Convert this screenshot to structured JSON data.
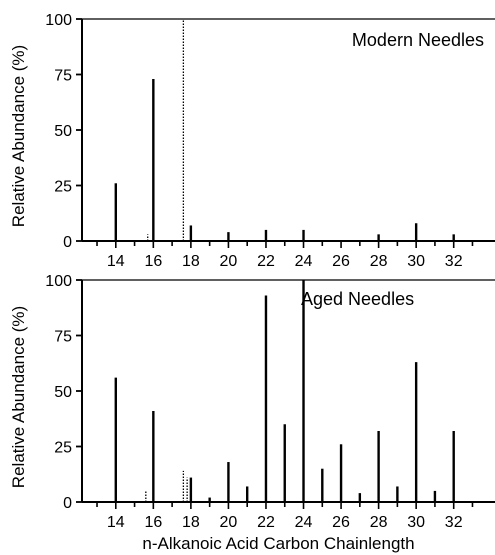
{
  "chart_data": [
    {
      "type": "bar",
      "panel_label": "Modern Needles",
      "ylabel": "Relative Abundance (%)",
      "ylim": [
        0,
        100
      ],
      "yticks": [
        0,
        25,
        50,
        75,
        100
      ],
      "xlim": [
        12.2,
        34.2
      ],
      "xticks": [
        14,
        16,
        18,
        20,
        22,
        24,
        26,
        28,
        30,
        32
      ],
      "series": [
        {
          "style": "solid",
          "x": [
            14,
            16,
            18,
            20,
            22,
            24,
            28,
            30,
            32
          ],
          "values": [
            26,
            73,
            7,
            4,
            5,
            5,
            3,
            8,
            3
          ]
        },
        {
          "style": "dotted",
          "x": [
            15.7,
            17.6
          ],
          "values": [
            3,
            100
          ]
        }
      ]
    },
    {
      "type": "bar",
      "panel_label": "Aged Needles",
      "ylabel": "Relative Abundance (%)",
      "xlabel": "n-Alkanoic Acid Carbon Chainlength",
      "ylim": [
        0,
        100
      ],
      "yticks": [
        0,
        25,
        50,
        75,
        100
      ],
      "xlim": [
        12.2,
        34.2
      ],
      "xticks": [
        14,
        16,
        18,
        20,
        22,
        24,
        26,
        28,
        30,
        32
      ],
      "series": [
        {
          "style": "solid",
          "x": [
            14,
            16,
            18,
            19,
            20,
            21,
            22,
            23,
            24,
            25,
            26,
            27,
            28,
            29,
            30,
            31,
            32
          ],
          "values": [
            56,
            41,
            11,
            2,
            18,
            7,
            93,
            35,
            100,
            15,
            26,
            4,
            32,
            7,
            63,
            5,
            32
          ]
        },
        {
          "style": "dotted",
          "x": [
            15.6,
            17.6,
            17.8
          ],
          "values": [
            5,
            14,
            11
          ]
        }
      ]
    }
  ]
}
